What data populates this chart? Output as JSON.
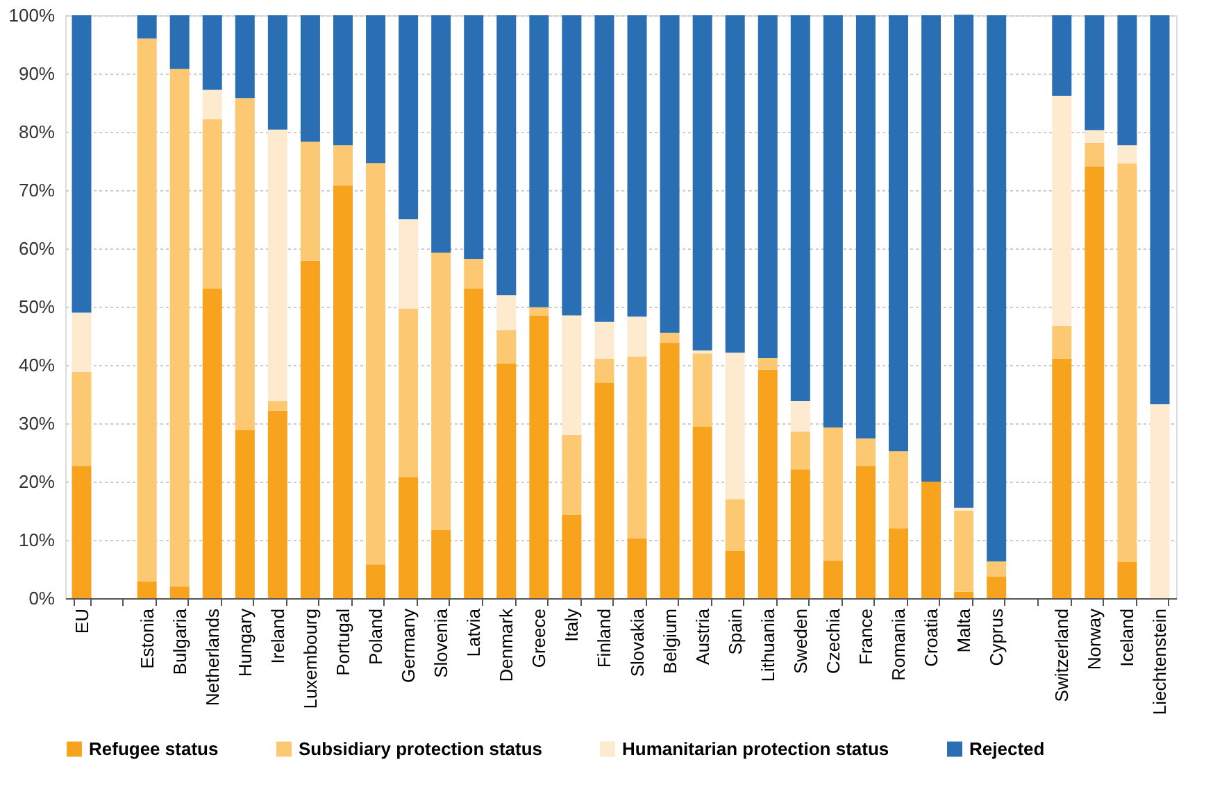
{
  "chart_data": {
    "type": "bar",
    "stacked": true,
    "legend": "bottom",
    "grid": "y",
    "categories": [
      "EU",
      null,
      "Estonia",
      "Bulgaria",
      "Netherlands",
      "Hungary",
      "Ireland",
      "Luxembourg",
      "Portugal",
      "Poland",
      "Germany",
      "Slovenia",
      "Latvia",
      "Denmark",
      "Greece",
      "Italy",
      "Finland",
      "Slovakia",
      "Belgium",
      "Austria",
      "Spain",
      "Lithuania",
      "Sweden",
      "Czechia",
      "France",
      "Romania",
      "Croatia",
      "Malta",
      "Cyprus",
      null,
      "Switzerland",
      "Norway",
      "Iceland",
      "Liechtenstein"
    ],
    "ylim": [
      0,
      100
    ],
    "yticks": [
      {
        "value": 0,
        "label": "0%"
      },
      {
        "value": 10,
        "label": "10%"
      },
      {
        "value": 20,
        "label": "20%"
      },
      {
        "value": 30,
        "label": "30%"
      },
      {
        "value": 40,
        "label": "40%"
      },
      {
        "value": 50,
        "label": "50%"
      },
      {
        "value": 60,
        "label": "60%"
      },
      {
        "value": 70,
        "label": "70%"
      },
      {
        "value": 80,
        "label": "80%"
      },
      {
        "value": 90,
        "label": "90%"
      },
      {
        "value": 100,
        "label": "100%"
      }
    ],
    "series": [
      {
        "name": "Refugee status",
        "color": "#f8a31e",
        "values": [
          22.7,
          null,
          2.9,
          2,
          53.1,
          28.8,
          32.2,
          57.9,
          70.8,
          5.8,
          20.8,
          11.7,
          53.1,
          40.3,
          48.5,
          14.3,
          37,
          10.3,
          43.8,
          29.4,
          8.1,
          39.2,
          22.1,
          6.5,
          22.7,
          12,
          20,
          1.1,
          3.7,
          null,
          41.1,
          74.1,
          6.2,
          0
        ]
      },
      {
        "name": "Subsidiary protection status",
        "color": "#fcc872",
        "values": [
          16.1,
          null,
          93.1,
          88.8,
          29.1,
          57,
          1.6,
          20.4,
          6.9,
          68.8,
          28.9,
          47.6,
          5.1,
          5.7,
          1.4,
          13.7,
          4.1,
          31.2,
          1.7,
          12.6,
          8.9,
          2,
          6.5,
          22.8,
          4.7,
          13.2,
          0,
          13.9,
          2.6,
          null,
          5.6,
          4,
          68.4,
          0
        ]
      },
      {
        "name": "Humanitarian protection status",
        "color": "#feebcf",
        "values": [
          10.2,
          null,
          0,
          0,
          5,
          0,
          46.6,
          0,
          0,
          0,
          15.3,
          0,
          0,
          6,
          0,
          20.5,
          6.3,
          6.8,
          0,
          0.5,
          25.1,
          0,
          5.2,
          0,
          0,
          0,
          0,
          0.5,
          0,
          null,
          39.5,
          2.2,
          3.1,
          33.3
        ]
      },
      {
        "name": "Rejected",
        "color": "#2a6eb3",
        "values": [
          51,
          null,
          4,
          9.2,
          12.8,
          14.2,
          19.6,
          21.7,
          22.3,
          25.4,
          35,
          40.7,
          41.8,
          48,
          50.1,
          51.5,
          52.6,
          51.7,
          54.5,
          57.5,
          57.9,
          58.8,
          66.2,
          70.7,
          72.6,
          74.8,
          80,
          84.6,
          93.7,
          null,
          13.8,
          19.7,
          22.3,
          66.7
        ]
      }
    ]
  }
}
